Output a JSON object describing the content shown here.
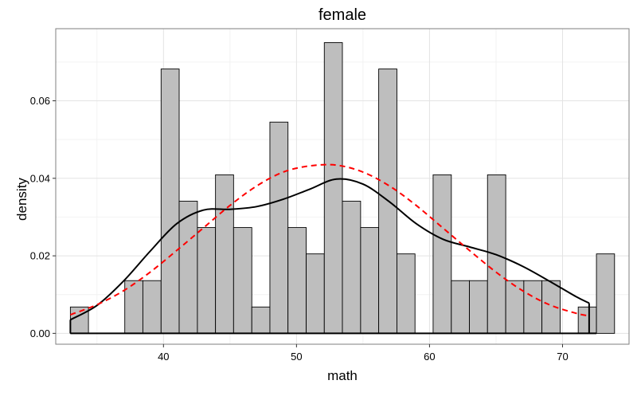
{
  "chart_data": {
    "type": "bar",
    "title": "female",
    "xlabel": "math",
    "ylabel": "density",
    "xlim": [
      31.9,
      75.0
    ],
    "ylim": [
      -0.0028,
      0.0786
    ],
    "x_ticks": [
      40,
      50,
      60,
      70
    ],
    "x_tick_labels": [
      "40",
      "50",
      "60",
      "70"
    ],
    "y_ticks": [
      0.0,
      0.02,
      0.04,
      0.06
    ],
    "y_tick_labels": [
      "0.00",
      "0.02",
      "0.04",
      "0.06"
    ],
    "grid": true,
    "bins": [
      {
        "left": 33.0,
        "right": 34.36,
        "density": 0.0068
      },
      {
        "left": 34.36,
        "right": 35.73,
        "density": 0.0
      },
      {
        "left": 35.73,
        "right": 37.09,
        "density": 0.0
      },
      {
        "left": 37.09,
        "right": 38.45,
        "density": 0.0136
      },
      {
        "left": 38.45,
        "right": 39.82,
        "density": 0.0136
      },
      {
        "left": 39.82,
        "right": 41.18,
        "density": 0.0682
      },
      {
        "left": 41.18,
        "right": 42.55,
        "density": 0.0341
      },
      {
        "left": 42.55,
        "right": 43.91,
        "density": 0.0273
      },
      {
        "left": 43.91,
        "right": 45.27,
        "density": 0.0409
      },
      {
        "left": 45.27,
        "right": 46.64,
        "density": 0.0273
      },
      {
        "left": 46.64,
        "right": 48.0,
        "density": 0.0068
      },
      {
        "left": 48.0,
        "right": 49.36,
        "density": 0.0545
      },
      {
        "left": 49.36,
        "right": 50.73,
        "density": 0.0273
      },
      {
        "left": 50.73,
        "right": 52.09,
        "density": 0.0205
      },
      {
        "left": 52.09,
        "right": 53.45,
        "density": 0.075
      },
      {
        "left": 53.45,
        "right": 54.82,
        "density": 0.0341
      },
      {
        "left": 54.82,
        "right": 56.18,
        "density": 0.0273
      },
      {
        "left": 56.18,
        "right": 57.55,
        "density": 0.0682
      },
      {
        "left": 57.55,
        "right": 58.91,
        "density": 0.0205
      },
      {
        "left": 58.91,
        "right": 60.27,
        "density": 0.0
      },
      {
        "left": 60.27,
        "right": 61.64,
        "density": 0.0409
      },
      {
        "left": 61.64,
        "right": 63.0,
        "density": 0.0136
      },
      {
        "left": 63.0,
        "right": 64.36,
        "density": 0.0136
      },
      {
        "left": 64.36,
        "right": 65.73,
        "density": 0.0409
      },
      {
        "left": 65.73,
        "right": 67.09,
        "density": 0.0136
      },
      {
        "left": 67.09,
        "right": 68.45,
        "density": 0.0136
      },
      {
        "left": 68.45,
        "right": 69.82,
        "density": 0.0136
      },
      {
        "left": 69.82,
        "right": 71.18,
        "density": 0.0
      },
      {
        "left": 71.18,
        "right": 72.55,
        "density": 0.0068
      },
      {
        "left": 72.55,
        "right": 73.91,
        "density": 0.0205
      }
    ],
    "series": [
      {
        "style": "solid",
        "color": "#000000",
        "points": [
          [
            33.0,
            0.0035
          ],
          [
            35.0,
            0.0072
          ],
          [
            37.0,
            0.0135
          ],
          [
            39.0,
            0.0212
          ],
          [
            41.0,
            0.0283
          ],
          [
            43.0,
            0.0318
          ],
          [
            45.0,
            0.032
          ],
          [
            47.0,
            0.0327
          ],
          [
            49.0,
            0.0346
          ],
          [
            51.0,
            0.0372
          ],
          [
            53.0,
            0.0398
          ],
          [
            55.0,
            0.0385
          ],
          [
            57.0,
            0.0339
          ],
          [
            59.0,
            0.0283
          ],
          [
            61.0,
            0.0243
          ],
          [
            63.0,
            0.0223
          ],
          [
            65.0,
            0.0203
          ],
          [
            67.0,
            0.0173
          ],
          [
            69.0,
            0.0135
          ],
          [
            71.0,
            0.0095
          ],
          [
            72.0,
            0.0078
          ]
        ]
      },
      {
        "style": "dashed",
        "color": "#ff0000",
        "points": [
          [
            33.0,
            0.0048
          ],
          [
            35.0,
            0.0074
          ],
          [
            37.0,
            0.011
          ],
          [
            39.0,
            0.0158
          ],
          [
            41.0,
            0.0214
          ],
          [
            43.0,
            0.0272
          ],
          [
            45.0,
            0.033
          ],
          [
            47.0,
            0.038
          ],
          [
            49.0,
            0.0416
          ],
          [
            51.0,
            0.0432
          ],
          [
            53.0,
            0.0434
          ],
          [
            55.0,
            0.0416
          ],
          [
            57.0,
            0.038
          ],
          [
            59.0,
            0.033
          ],
          [
            61.0,
            0.0272
          ],
          [
            63.0,
            0.0214
          ],
          [
            65.0,
            0.0158
          ],
          [
            67.0,
            0.011
          ],
          [
            69.0,
            0.0074
          ],
          [
            71.0,
            0.0052
          ],
          [
            72.0,
            0.0045
          ]
        ]
      }
    ],
    "colors": {
      "bar_fill": "#bebebe",
      "bar_stroke": "#000000",
      "grid_major": "#e3e3e3",
      "grid_minor": "#f2f2f2",
      "panel_border": "#7f7f7f"
    }
  }
}
